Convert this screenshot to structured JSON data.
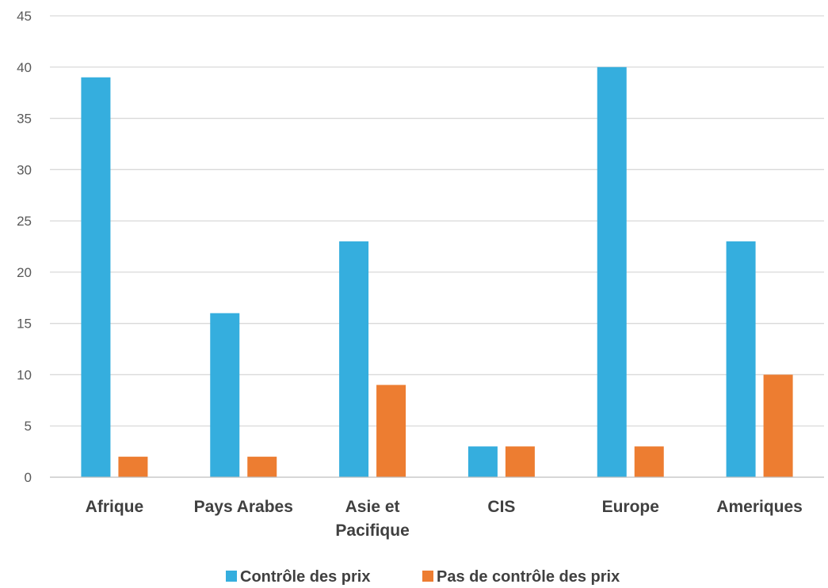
{
  "chart_data": {
    "type": "bar",
    "categories": [
      [
        "Afrique"
      ],
      [
        "Pays Arabes"
      ],
      [
        "Asie et",
        "Pacifique"
      ],
      [
        "CIS"
      ],
      [
        "Europe"
      ],
      [
        "Ameriques"
      ]
    ],
    "series": [
      {
        "name": "Contrôle des prix",
        "color": "#35AEDE",
        "values": [
          39,
          16,
          23,
          3,
          40,
          23
        ]
      },
      {
        "name": "Pas de contrôle des prix",
        "color": "#ED7D31",
        "values": [
          2,
          2,
          9,
          3,
          3,
          10
        ]
      }
    ],
    "ylim": [
      0,
      45
    ],
    "yticks": [
      0,
      5,
      10,
      15,
      20,
      25,
      30,
      35,
      40,
      45
    ],
    "grid": true,
    "legend_position": "bottom"
  }
}
